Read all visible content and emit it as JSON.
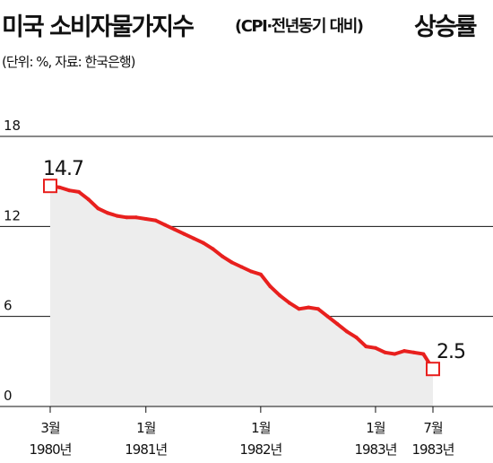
{
  "header": {
    "title_main": "미국 소비자물가지수",
    "title_paren": "(CPI·전년동기 대비)",
    "title_end": "상승률",
    "subtitle": "(단위: %, 자료: 한국은행)"
  },
  "colors": {
    "line": "#e8201e",
    "area": "#ededed",
    "grid": "#111111",
    "text": "#111111"
  },
  "chart_data": {
    "type": "area",
    "title": "미국 소비자물가지수(CPI·전년동기 대비) 상승률",
    "subtitle": "(단위: %, 자료: 한국은행)",
    "ylim": [
      0,
      18
    ],
    "yticks": [
      0,
      6,
      12,
      18
    ],
    "grid": true,
    "x": [
      "1980-03",
      "1980-04",
      "1980-05",
      "1980-06",
      "1980-07",
      "1980-08",
      "1980-09",
      "1980-10",
      "1980-11",
      "1980-12",
      "1981-01",
      "1981-02",
      "1981-03",
      "1981-04",
      "1981-05",
      "1981-06",
      "1981-07",
      "1981-08",
      "1981-09",
      "1981-10",
      "1981-11",
      "1981-12",
      "1982-01",
      "1982-02",
      "1982-03",
      "1982-04",
      "1982-05",
      "1982-06",
      "1982-07",
      "1982-08",
      "1982-09",
      "1982-10",
      "1982-11",
      "1982-12",
      "1983-01",
      "1983-02",
      "1983-03",
      "1983-04",
      "1983-05",
      "1983-06",
      "1983-07"
    ],
    "series": [
      {
        "values": [
          14.7,
          14.6,
          14.4,
          14.3,
          13.8,
          13.2,
          12.9,
          12.7,
          12.6,
          12.6,
          12.5,
          12.4,
          12.1,
          11.8,
          11.5,
          11.2,
          10.9,
          10.5,
          10.0,
          9.6,
          9.3,
          9.0,
          8.8,
          8.0,
          7.4,
          6.9,
          6.5,
          6.6,
          6.5,
          6.0,
          5.5,
          5.0,
          4.6,
          4.0,
          3.9,
          3.6,
          3.5,
          3.7,
          3.6,
          3.5,
          2.5
        ]
      }
    ],
    "xtick_labels": [
      {
        "line1": "3월",
        "line2": "1980년",
        "at": "1980-03"
      },
      {
        "line1": "1월",
        "line2": "1981년",
        "at": "1981-01"
      },
      {
        "line1": "1월",
        "line2": "1982년",
        "at": "1982-01"
      },
      {
        "line1": "1월",
        "line2": "1983년",
        "at": "1983-01"
      },
      {
        "line1": "7월",
        "line2": "1983년",
        "at": "1983-07"
      }
    ],
    "annotations": [
      {
        "label": "14.7",
        "at": "1980-03"
      },
      {
        "label": "2.5",
        "at": "1983-07"
      }
    ]
  }
}
